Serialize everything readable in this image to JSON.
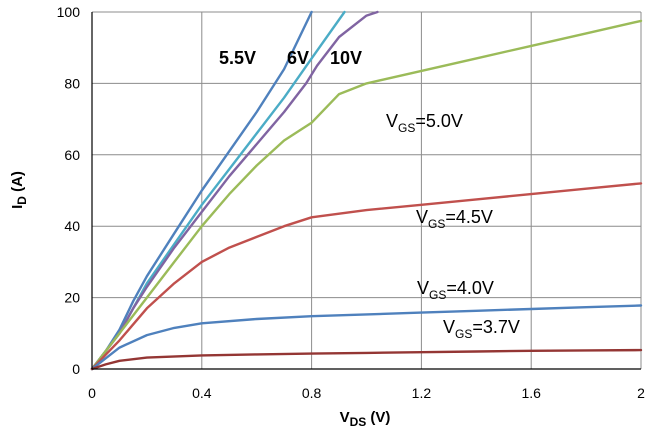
{
  "chart_data": {
    "type": "line",
    "xlabel": "V",
    "xlabel_sub": "DS",
    "xlabel_unit": " (V)",
    "ylabel": "I",
    "ylabel_sub": "D",
    "ylabel_unit": " (A)",
    "xlim": [
      0,
      2
    ],
    "ylim": [
      0,
      100
    ],
    "x_ticks": [
      0,
      0.4,
      0.8,
      1.2,
      1.6,
      2
    ],
    "x_tick_labels": [
      "0",
      "0.4",
      "0.8",
      "1.2",
      "1.6",
      "2"
    ],
    "y_ticks": [
      0,
      20,
      40,
      60,
      80,
      100
    ],
    "y_tick_labels": [
      "0",
      "20",
      "40",
      "60",
      "80",
      "100"
    ],
    "grid": true,
    "series": [
      {
        "name": "5.5V",
        "color": "#4f81bd",
        "points": [
          [
            0,
            0
          ],
          [
            0.05,
            5
          ],
          [
            0.1,
            11
          ],
          [
            0.15,
            19
          ],
          [
            0.2,
            26
          ],
          [
            0.3,
            38
          ],
          [
            0.4,
            50
          ],
          [
            0.5,
            61
          ],
          [
            0.6,
            72
          ],
          [
            0.7,
            84
          ],
          [
            0.8,
            100
          ]
        ]
      },
      {
        "name": "6V",
        "color": "#4bacc6",
        "points": [
          [
            0,
            0
          ],
          [
            0.05,
            5
          ],
          [
            0.1,
            10
          ],
          [
            0.15,
            17
          ],
          [
            0.2,
            24
          ],
          [
            0.3,
            35
          ],
          [
            0.4,
            46
          ],
          [
            0.5,
            56
          ],
          [
            0.6,
            66
          ],
          [
            0.7,
            76
          ],
          [
            0.8,
            87
          ],
          [
            0.92,
            100
          ]
        ]
      },
      {
        "name": "10V",
        "color": "#8064a2",
        "points": [
          [
            0,
            0
          ],
          [
            0.05,
            5
          ],
          [
            0.1,
            10
          ],
          [
            0.15,
            17
          ],
          [
            0.2,
            23
          ],
          [
            0.3,
            34
          ],
          [
            0.4,
            44
          ],
          [
            0.5,
            54
          ],
          [
            0.6,
            63
          ],
          [
            0.7,
            72
          ],
          [
            0.78,
            80
          ],
          [
            0.82,
            85
          ],
          [
            0.9,
            93
          ],
          [
            1.0,
            99
          ],
          [
            1.04,
            100
          ]
        ]
      },
      {
        "name": "V_GS=5.0V",
        "color": "#9bbb59",
        "points": [
          [
            0,
            0
          ],
          [
            0.05,
            5
          ],
          [
            0.1,
            10
          ],
          [
            0.2,
            20
          ],
          [
            0.3,
            30
          ],
          [
            0.4,
            40
          ],
          [
            0.5,
            49
          ],
          [
            0.6,
            57
          ],
          [
            0.7,
            64
          ],
          [
            0.8,
            69
          ],
          [
            0.85,
            73
          ],
          [
            0.9,
            77
          ],
          [
            1.0,
            80
          ],
          [
            1.2,
            83.5
          ],
          [
            1.4,
            87
          ],
          [
            1.6,
            90.5
          ],
          [
            1.8,
            94
          ],
          [
            2.0,
            97.5
          ]
        ]
      },
      {
        "name": "V_GS=4.5V",
        "color": "#c0504d",
        "points": [
          [
            0,
            0
          ],
          [
            0.05,
            4
          ],
          [
            0.1,
            8
          ],
          [
            0.2,
            17
          ],
          [
            0.3,
            24
          ],
          [
            0.4,
            30
          ],
          [
            0.5,
            34
          ],
          [
            0.6,
            37
          ],
          [
            0.7,
            40
          ],
          [
            0.8,
            42.5
          ],
          [
            1.0,
            44.5
          ],
          [
            1.2,
            46
          ],
          [
            1.4,
            47.5
          ],
          [
            1.6,
            49
          ],
          [
            1.8,
            50.5
          ],
          [
            2.0,
            52
          ]
        ]
      },
      {
        "name": "V_GS=4.0V",
        "color": "#4f81bd",
        "points": [
          [
            0,
            0
          ],
          [
            0.05,
            3
          ],
          [
            0.1,
            6
          ],
          [
            0.2,
            9.5
          ],
          [
            0.3,
            11.5
          ],
          [
            0.4,
            12.8
          ],
          [
            0.6,
            14
          ],
          [
            0.8,
            14.8
          ],
          [
            1.0,
            15.3
          ],
          [
            1.2,
            15.8
          ],
          [
            1.4,
            16.3
          ],
          [
            1.6,
            16.8
          ],
          [
            1.8,
            17.3
          ],
          [
            2.0,
            17.8
          ]
        ]
      },
      {
        "name": "V_GS=3.7V",
        "color": "#943634",
        "points": [
          [
            0,
            0
          ],
          [
            0.05,
            1.3
          ],
          [
            0.1,
            2.3
          ],
          [
            0.2,
            3.2
          ],
          [
            0.4,
            3.8
          ],
          [
            0.6,
            4.1
          ],
          [
            0.8,
            4.3
          ],
          [
            1.0,
            4.5
          ],
          [
            1.2,
            4.7
          ],
          [
            1.4,
            4.9
          ],
          [
            1.6,
            5.1
          ],
          [
            1.8,
            5.2
          ],
          [
            2.0,
            5.3
          ]
        ]
      }
    ],
    "annotations": {
      "a55": "5.5V",
      "a6": "6V",
      "a10": "10V",
      "vgs": "V",
      "vgs_sub": "GS",
      "l50": "=5.0V",
      "l45": "=4.5V",
      "l40": "=4.0V",
      "l37": "=3.7V"
    }
  }
}
